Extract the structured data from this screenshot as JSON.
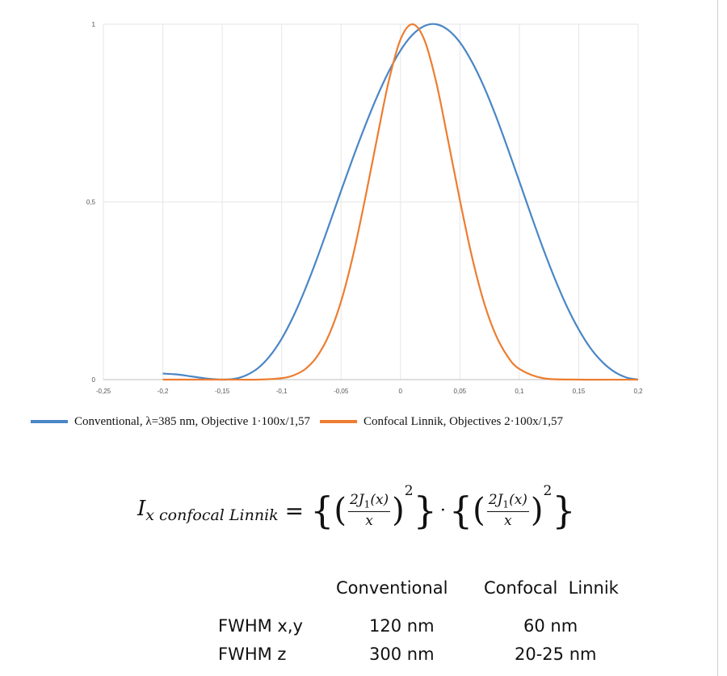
{
  "chart_data": {
    "type": "line",
    "xlim": [
      -0.25,
      0.2
    ],
    "ylim": [
      0,
      1
    ],
    "x_ticks": [
      "-0,25",
      "-0,2",
      "-0,15",
      "-0,1",
      "-0,05",
      "0",
      "0,05",
      "0,1",
      "0,15",
      "0,2"
    ],
    "y_ticks": [
      "0",
      "0,5",
      "1"
    ],
    "grid": true,
    "legend_position": "bottom",
    "series": [
      {
        "name": "Conventional, λ=385 nm, Objective 1·100x/1,57",
        "color": "#4a86c5",
        "x": [
          -0.2,
          -0.19,
          -0.18,
          -0.17,
          -0.16,
          -0.15,
          -0.14,
          -0.13,
          -0.12,
          -0.11,
          -0.1,
          -0.09,
          -0.08,
          -0.07,
          -0.06,
          -0.05,
          -0.04,
          -0.03,
          -0.02,
          -0.01,
          0,
          0.01,
          0.02,
          0.03,
          0.04,
          0.05,
          0.06,
          0.07,
          0.08,
          0.09,
          0.1,
          0.11,
          0.12,
          0.13,
          0.14,
          0.15,
          0.16,
          0.17,
          0.18,
          0.19,
          0.2
        ],
        "y": [
          0.017,
          0.015,
          0.011,
          0.006,
          0.002,
          0,
          0.002,
          0.012,
          0.032,
          0.066,
          0.115,
          0.179,
          0.256,
          0.343,
          0.436,
          0.531,
          0.624,
          0.712,
          0.794,
          0.866,
          0.926,
          0.97,
          0.995,
          1.0,
          0.984,
          0.949,
          0.895,
          0.826,
          0.744,
          0.653,
          0.558,
          0.462,
          0.369,
          0.283,
          0.206,
          0.141,
          0.088,
          0.049,
          0.022,
          0.006,
          0.0
        ],
        "note_shift": 0.0
      },
      {
        "name": "Confocal Linnik, Objectives 2·100x/1,57",
        "color": "#ed7d31",
        "x": [
          -0.2,
          -0.15,
          -0.12,
          -0.1,
          -0.09,
          -0.08,
          -0.07,
          -0.06,
          -0.05,
          -0.04,
          -0.03,
          -0.02,
          -0.01,
          0,
          0.01,
          0.02,
          0.03,
          0.04,
          0.05,
          0.06,
          0.07,
          0.08,
          0.09,
          0.1,
          0.12,
          0.15,
          0.2
        ],
        "y": [
          0,
          0,
          0,
          0.004,
          0.012,
          0.03,
          0.066,
          0.127,
          0.22,
          0.348,
          0.505,
          0.674,
          0.838,
          0.957,
          1.0,
          0.957,
          0.838,
          0.674,
          0.505,
          0.348,
          0.22,
          0.127,
          0.066,
          0.03,
          0.004,
          0,
          0
        ]
      }
    ]
  },
  "formula": {
    "lhs_main": "I",
    "lhs_sub": "x confocal Linnik",
    "equals": "=",
    "open_brace": "{",
    "close_brace": "}",
    "open_paren": "(",
    "close_paren": ")",
    "numerator_pre": "2J",
    "numerator_sub": "1",
    "numerator_post": "(x)",
    "denominator": "x",
    "exponent": "2",
    "dot": "·"
  },
  "comparison_table": {
    "headers": [
      "Conventional",
      "Confocal  Linnik"
    ],
    "rows": [
      {
        "label": "FWHM x,y",
        "conventional": "120 nm",
        "confocal": "60 nm"
      },
      {
        "label": "FWHM z",
        "conventional": "300 nm",
        "confocal": "20-25 nm"
      }
    ]
  }
}
